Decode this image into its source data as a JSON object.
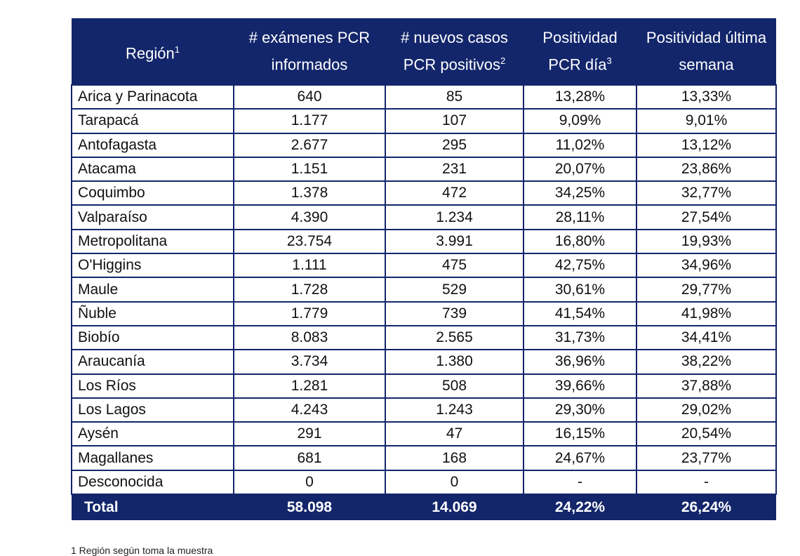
{
  "headers": [
    {
      "text": "Región",
      "sup": "1"
    },
    {
      "text": "# exámenes PCR informados",
      "sup": ""
    },
    {
      "text": "# nuevos casos PCR positivos",
      "sup": "2"
    },
    {
      "text": "Positividad PCR día",
      "sup": "3"
    },
    {
      "text": "Positividad última semana",
      "sup": ""
    }
  ],
  "rows": [
    [
      "Arica y Parinacota",
      "640",
      "85",
      "13,28%",
      "13,33%"
    ],
    [
      "Tarapacá",
      "1.177",
      "107",
      "9,09%",
      "9,01%"
    ],
    [
      "Antofagasta",
      "2.677",
      "295",
      "11,02%",
      "13,12%"
    ],
    [
      "Atacama",
      "1.151",
      "231",
      "20,07%",
      "23,86%"
    ],
    [
      "Coquimbo",
      "1.378",
      "472",
      "34,25%",
      "32,77%"
    ],
    [
      "Valparaíso",
      "4.390",
      "1.234",
      "28,11%",
      "27,54%"
    ],
    [
      "Metropolitana",
      "23.754",
      "3.991",
      "16,80%",
      "19,93%"
    ],
    [
      "O'Higgins",
      "1.111",
      "475",
      "42,75%",
      "34,96%"
    ],
    [
      "Maule",
      "1.728",
      "529",
      "30,61%",
      "29,77%"
    ],
    [
      "Ñuble",
      "1.779",
      "739",
      "41,54%",
      "41,98%"
    ],
    [
      "Biobío",
      "8.083",
      "2.565",
      "31,73%",
      "34,41%"
    ],
    [
      "Araucanía",
      "3.734",
      "1.380",
      "36,96%",
      "38,22%"
    ],
    [
      "Los Ríos",
      "1.281",
      "508",
      "39,66%",
      "37,88%"
    ],
    [
      "Los Lagos",
      "4.243",
      "1.243",
      "29,30%",
      "29,02%"
    ],
    [
      "Aysén",
      "291",
      "47",
      "16,15%",
      "20,54%"
    ],
    [
      "Magallanes",
      "681",
      "168",
      "24,67%",
      "23,77%"
    ],
    [
      "Desconocida",
      "0",
      "0",
      "-",
      "-"
    ]
  ],
  "total": [
    "Total",
    "58.098",
    "14.069",
    "24,22%",
    "26,24%"
  ],
  "footnote": "1 Región según toma la muestra"
}
